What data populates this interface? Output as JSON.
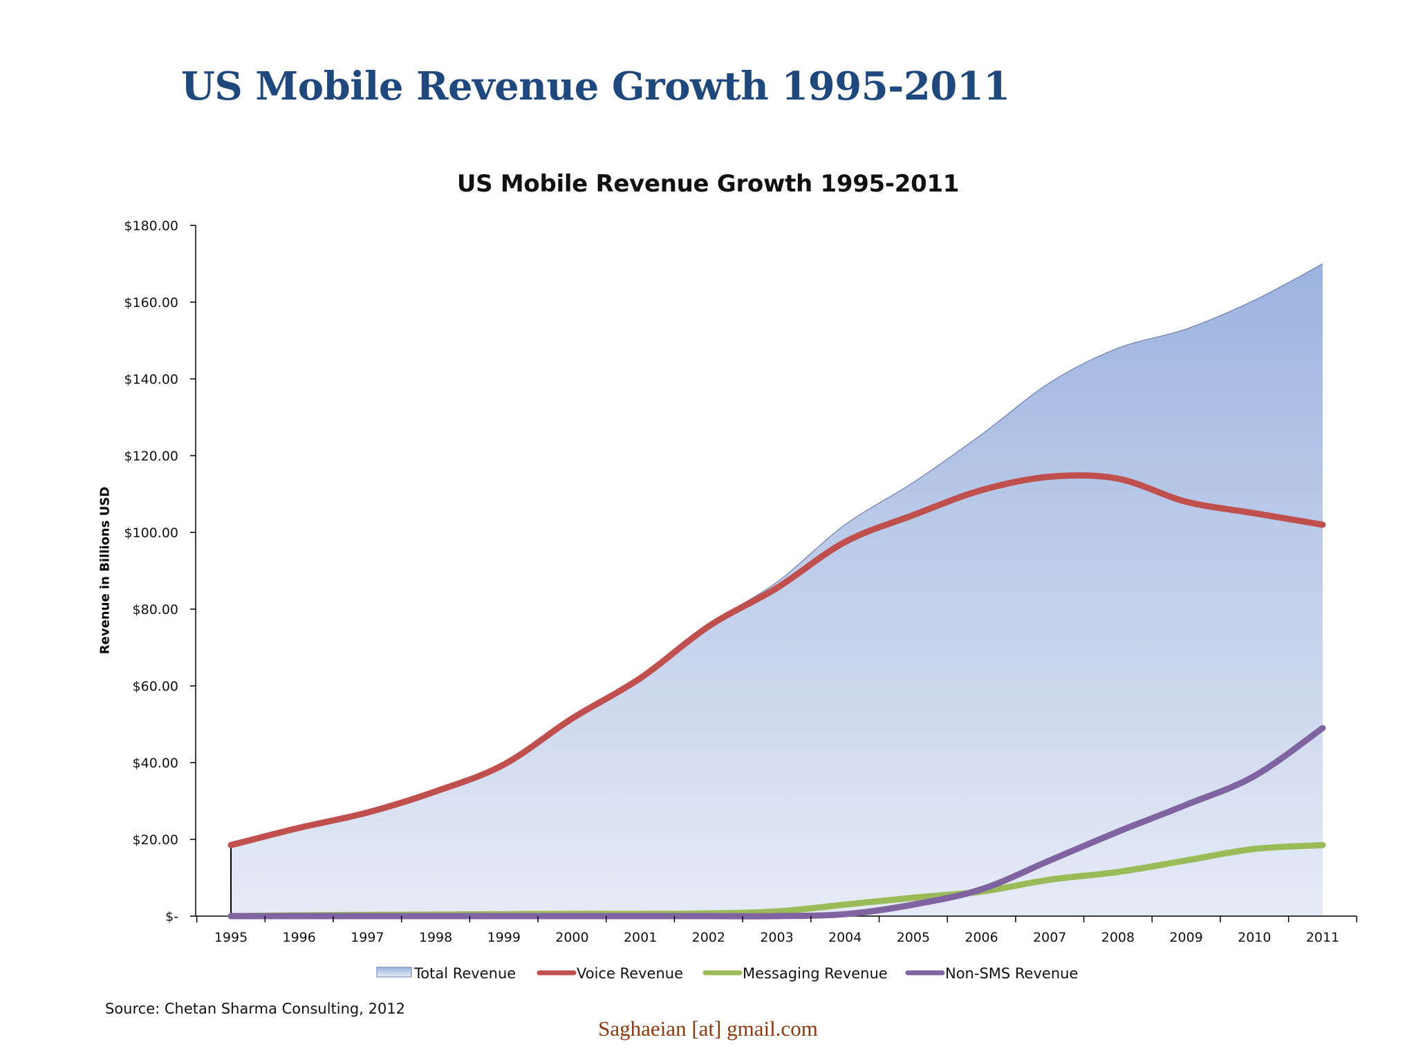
{
  "slide": {
    "title": "US Mobile Revenue Growth 1995-2011",
    "source": "Source:  Chetan Sharma Consulting, 2012",
    "footer": "Saghaeian [at] gmail.com",
    "title_color": "#1f497d",
    "footer_color": "#8b3a0e"
  },
  "chart_data": {
    "type": "area",
    "title": "US Mobile Revenue Growth 1995-2011",
    "xlabel": "",
    "ylabel": "Revenue in Billions USD",
    "ylim": [
      0,
      180
    ],
    "y_ticks": [
      0,
      20,
      40,
      60,
      80,
      100,
      120,
      140,
      160,
      180
    ],
    "y_tick_labels": [
      "$-",
      "$20.00",
      "$40.00",
      "$60.00",
      "$80.00",
      "$100.00",
      "$120.00",
      "$140.00",
      "$160.00",
      "$180.00"
    ],
    "categories": [
      "1995",
      "1996",
      "1997",
      "1998",
      "1999",
      "2000",
      "2001",
      "2002",
      "2003",
      "2004",
      "2005",
      "2006",
      "2007",
      "2008",
      "2009",
      "2010",
      "2011"
    ],
    "grid": false,
    "legend_position": "bottom",
    "series": [
      {
        "name": "Total Revenue",
        "type": "area",
        "color": "#a4b7e0",
        "values": [
          19,
          23.5,
          27.5,
          32.5,
          39.5,
          52,
          62,
          76,
          87,
          102,
          113,
          125.5,
          139,
          148,
          153,
          160.5,
          170
        ]
      },
      {
        "name": "Voice Revenue",
        "type": "line",
        "color": "#c0504d",
        "values": [
          18.5,
          23,
          27,
          32.5,
          39.5,
          51.5,
          62,
          75.5,
          85.5,
          97.5,
          104.5,
          111,
          114.5,
          114,
          108,
          105,
          102
        ]
      },
      {
        "name": "Messaging Revenue",
        "type": "line",
        "color": "#9bbb59",
        "values": [
          0,
          0.2,
          0.3,
          0.4,
          0.5,
          0.6,
          0.6,
          0.7,
          1.2,
          3,
          4.8,
          6.4,
          9.5,
          11.5,
          14.5,
          17.5,
          18.5
        ]
      },
      {
        "name": "Non-SMS Revenue",
        "type": "line",
        "color": "#8064a2",
        "values": [
          0,
          0,
          0,
          0,
          0,
          0,
          0,
          0,
          0,
          0.5,
          3,
          7,
          14.5,
          22,
          29,
          36.5,
          49
        ]
      }
    ]
  }
}
